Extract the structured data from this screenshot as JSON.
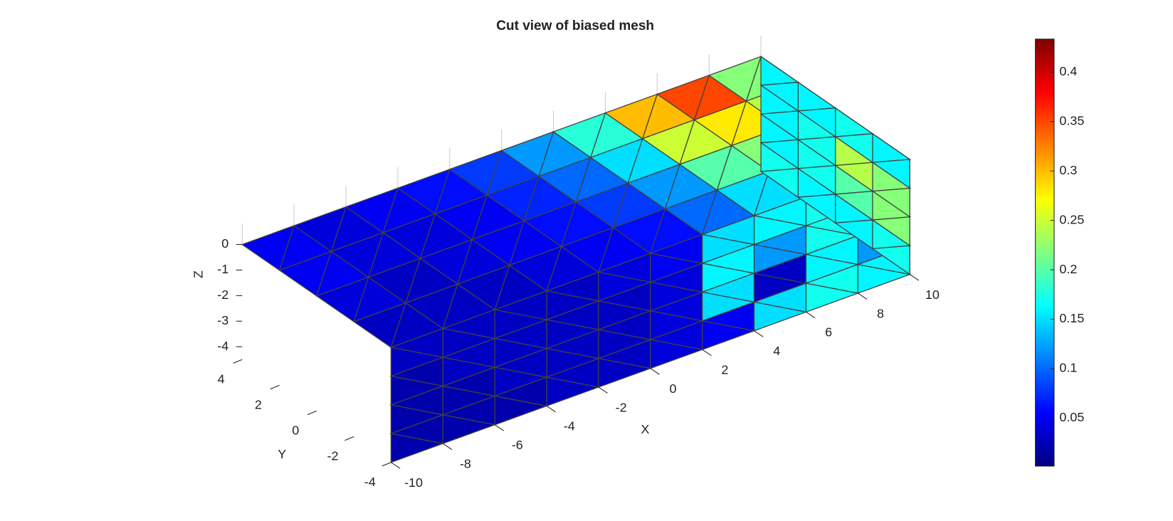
{
  "chart_data": {
    "type": "mesh3d",
    "title": "Cut view of biased mesh",
    "xlabel": "X",
    "ylabel": "Y",
    "zlabel": "Z",
    "xlim": [
      -10,
      10
    ],
    "ylim": [
      -4,
      4
    ],
    "zlim": [
      -4.5,
      0
    ],
    "xticks": [
      -10,
      -8,
      -6,
      -4,
      -2,
      0,
      2,
      4,
      6,
      8,
      10
    ],
    "yticks": [
      -4,
      -2,
      0,
      2,
      4
    ],
    "zticks": [
      -4,
      -3,
      -2,
      -1,
      0
    ],
    "colormap": "jet",
    "edge_color": "#404040",
    "clim": [
      0.0013,
      0.4335
    ],
    "cticks": [
      0.05,
      0.1,
      0.15,
      0.2,
      0.25,
      0.3,
      0.35,
      0.4
    ],
    "top_values": [
      [
        0.03,
        0.03,
        0.03,
        0.04,
        0.05,
        0.06,
        0.1,
        0.15,
        0.17,
        0.16
      ],
      [
        0.04,
        0.03,
        0.04,
        0.05,
        0.06,
        0.08,
        0.12,
        0.2,
        0.22,
        0.2
      ],
      [
        0.05,
        0.04,
        0.04,
        0.05,
        0.07,
        0.1,
        0.15,
        0.25,
        0.28,
        0.24
      ],
      [
        0.05,
        0.04,
        0.05,
        0.06,
        0.08,
        0.12,
        0.18,
        0.3,
        0.35,
        0.22
      ]
    ],
    "front_values": [
      [
        0.03,
        0.03,
        0.03,
        0.03,
        0.04,
        0.05,
        0.15,
        0.16,
        0.17,
        0.15
      ],
      [
        0.02,
        0.03,
        0.03,
        0.03,
        0.03,
        0.04,
        0.16,
        0.12,
        0.17,
        0.2
      ],
      [
        0.02,
        0.02,
        0.03,
        0.03,
        0.03,
        0.04,
        0.15,
        0.03,
        0.16,
        0.12
      ],
      [
        0.02,
        0.02,
        0.02,
        0.03,
        0.03,
        0.04,
        0.05,
        0.15,
        0.17,
        0.16
      ]
    ],
    "end_values": [
      [
        0.16,
        0.17,
        0.16,
        0.16
      ],
      [
        0.22,
        0.24,
        0.17,
        0.16
      ],
      [
        0.22,
        0.2,
        0.17,
        0.16
      ],
      [
        0.17,
        0.16,
        0.16,
        0.17
      ]
    ]
  }
}
